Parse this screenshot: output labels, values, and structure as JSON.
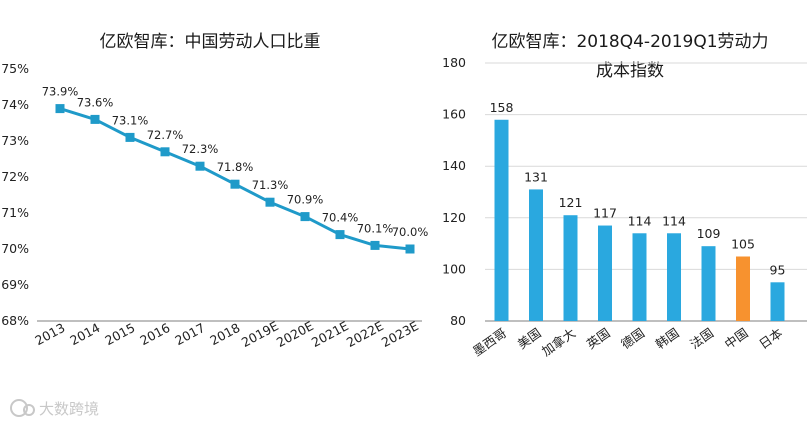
{
  "chart_data": [
    {
      "type": "line",
      "title": "亿欧智库：中国劳动人口比重",
      "categories": [
        "2013",
        "2014",
        "2015",
        "2016",
        "2017",
        "2018",
        "2019E",
        "2020E",
        "2021E",
        "2022E",
        "2023E"
      ],
      "values": [
        73.9,
        73.6,
        73.1,
        72.7,
        72.3,
        71.8,
        71.3,
        70.9,
        70.4,
        70.1,
        70.0
      ],
      "value_labels": [
        "73.9%",
        "73.6%",
        "73.1%",
        "72.7%",
        "72.3%",
        "71.8%",
        "71.3%",
        "70.9%",
        "70.4%",
        "70.1%",
        "70.0%"
      ],
      "yticks": [
        "75%",
        "74%",
        "73%",
        "72%",
        "71%",
        "70%",
        "69%",
        "68%"
      ],
      "ylim": [
        68,
        75
      ],
      "color": "#1f9ac9",
      "grid": false
    },
    {
      "type": "bar",
      "title": [
        "亿欧智库：2018Q4-2019Q1劳动力",
        "成本指数"
      ],
      "categories": [
        "墨西哥",
        "美国",
        "加拿大",
        "英国",
        "德国",
        "韩国",
        "法国",
        "中国",
        "日本"
      ],
      "values": [
        158,
        131,
        121,
        117,
        114,
        114,
        109,
        105,
        95
      ],
      "yticks": [
        "180",
        "160",
        "140",
        "120",
        "100",
        "80"
      ],
      "ylim": [
        80,
        180
      ],
      "colors": [
        "#2aa8df",
        "#2aa8df",
        "#2aa8df",
        "#2aa8df",
        "#2aa8df",
        "#2aa8df",
        "#2aa8df",
        "#f7922f",
        "#2aa8df"
      ],
      "grid": true
    }
  ],
  "watermark": "大数跨境"
}
